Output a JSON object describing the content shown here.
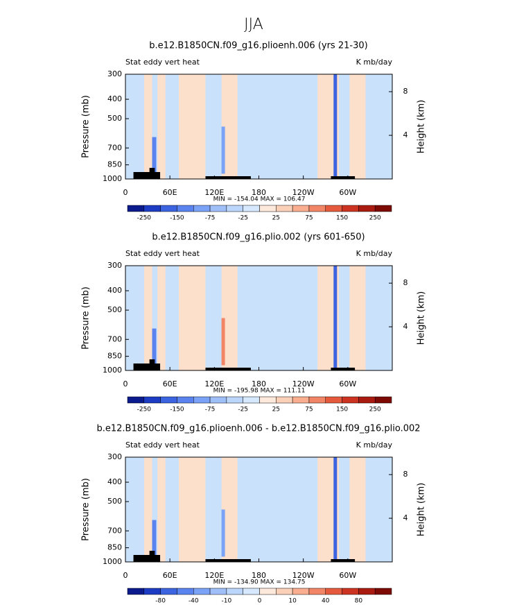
{
  "title": "JJA",
  "chart_data": [
    {
      "type": "contour",
      "title": "b.e12.B1850CN.f09_g16.plioenh.006 (yrs 21-30)",
      "left_label": "Stat eddy vert heat",
      "right_label": "K mb/day",
      "ylabel": "Pressure (mb)",
      "y2label": "Height (km)",
      "stats": "MIN = -154.04   MAX = 106.47",
      "xlim": [
        0,
        360
      ],
      "xticks": [
        0,
        {
          "value": 60,
          "label": "60E"
        },
        {
          "value": 120,
          "label": "120E"
        },
        180,
        {
          "value": 240,
          "label": "120W"
        },
        {
          "value": 300,
          "label": "60W"
        }
      ],
      "ylim": [
        1000,
        300
      ],
      "log_y": true,
      "yticks": [
        300,
        400,
        500,
        700,
        850,
        1000
      ],
      "y2lim": [
        0,
        9.6
      ],
      "y2ticks": [
        4,
        8
      ],
      "colorbar": {
        "colors": [
          "#0b1a8c",
          "#1d3cc4",
          "#3c63e0",
          "#5a83f0",
          "#7aa2f6",
          "#9fbff9",
          "#bcd6fb",
          "#d6e8fd",
          "#fde8dc",
          "#fbd0b9",
          "#f8ae8f",
          "#f28565",
          "#e55a3c",
          "#cc3320",
          "#a91a10",
          "#7d0a05"
        ],
        "levels": [
          -250,
          -200,
          -150,
          -100,
          -75,
          -50,
          -25,
          0,
          25,
          50,
          75,
          100,
          150,
          200,
          250
        ],
        "ticks": [
          -250,
          -150,
          -75,
          -25,
          25,
          75,
          150,
          250
        ]
      }
    },
    {
      "type": "contour",
      "title": "b.e12.B1850CN.f09_g16.plio.002 (yrs 601-650)",
      "left_label": "Stat eddy vert heat",
      "right_label": "K mb/day",
      "ylabel": "Pressure (mb)",
      "y2label": "Height (km)",
      "stats": "MIN = -195.98   MAX = 111.11",
      "xlim": [
        0,
        360
      ],
      "xticks": [
        0,
        {
          "value": 60,
          "label": "60E"
        },
        {
          "value": 120,
          "label": "120E"
        },
        180,
        {
          "value": 240,
          "label": "120W"
        },
        {
          "value": 300,
          "label": "60W"
        }
      ],
      "ylim": [
        1000,
        300
      ],
      "log_y": true,
      "yticks": [
        300,
        400,
        500,
        700,
        850,
        1000
      ],
      "y2lim": [
        0,
        9.6
      ],
      "y2ticks": [
        4,
        8
      ],
      "colorbar": {
        "colors": [
          "#0b1a8c",
          "#1d3cc4",
          "#3c63e0",
          "#5a83f0",
          "#7aa2f6",
          "#9fbff9",
          "#bcd6fb",
          "#d6e8fd",
          "#fde8dc",
          "#fbd0b9",
          "#f8ae8f",
          "#f28565",
          "#e55a3c",
          "#cc3320",
          "#a91a10",
          "#7d0a05"
        ],
        "levels": [
          -250,
          -200,
          -150,
          -100,
          -75,
          -50,
          -25,
          0,
          25,
          50,
          75,
          100,
          150,
          200,
          250
        ],
        "ticks": [
          -250,
          -150,
          -75,
          -25,
          25,
          75,
          150,
          250
        ]
      }
    },
    {
      "type": "contour",
      "title": "b.e12.B1850CN.f09_g16.plioenh.006 - b.e12.B1850CN.f09_g16.plio.002",
      "left_label": "Stat eddy vert heat",
      "right_label": "K mb/day",
      "ylabel": "Pressure (mb)",
      "y2label": "Height (km)",
      "stats": "MIN = -134.90   MAX = 134.75",
      "xlim": [
        0,
        360
      ],
      "xticks": [
        0,
        {
          "value": 60,
          "label": "60E"
        },
        {
          "value": 120,
          "label": "120E"
        },
        180,
        {
          "value": 240,
          "label": "120W"
        },
        {
          "value": 300,
          "label": "60W"
        }
      ],
      "ylim": [
        1000,
        300
      ],
      "log_y": true,
      "yticks": [
        300,
        400,
        500,
        700,
        850,
        1000
      ],
      "y2lim": [
        0,
        9.6
      ],
      "y2ticks": [
        4,
        8
      ],
      "colorbar": {
        "colors": [
          "#0b1a8c",
          "#1d3cc4",
          "#3c63e0",
          "#5a83f0",
          "#7aa2f6",
          "#9fbff9",
          "#bcd6fb",
          "#d6e8fd",
          "#fde8dc",
          "#fbd0b9",
          "#f8ae8f",
          "#f28565",
          "#e55a3c",
          "#cc3320",
          "#a91a10",
          "#7d0a05"
        ],
        "levels": [
          -100,
          -80,
          -60,
          -40,
          -20,
          -10,
          -5,
          0,
          5,
          10,
          20,
          40,
          60,
          80,
          100
        ],
        "ticks": [
          -80,
          -40,
          -10,
          0,
          10,
          40,
          80
        ]
      }
    }
  ]
}
